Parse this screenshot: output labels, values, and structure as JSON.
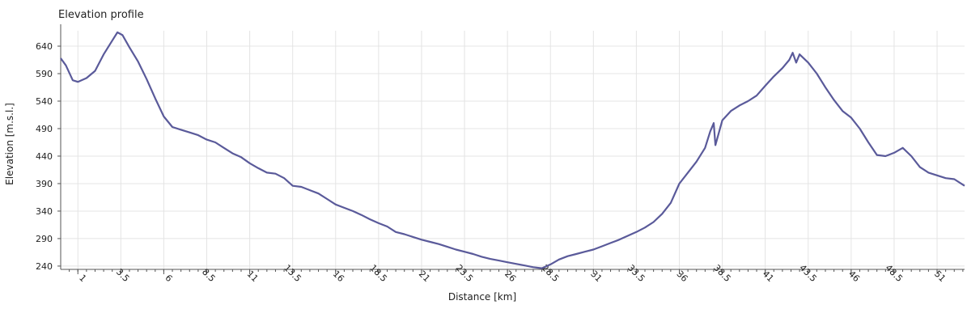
{
  "chart_data": {
    "type": "line",
    "title": "Elevation profile",
    "xlabel": "Distance [km]",
    "ylabel": "Elevation [m.s.l.]",
    "x_ticks": [
      "1",
      "3.5",
      "6",
      "8.5",
      "11",
      "13.5",
      "16",
      "18.5",
      "21",
      "23.5",
      "26",
      "28.5",
      "31",
      "33.5",
      "36",
      "38.5",
      "41",
      "43.5",
      "46",
      "48.5",
      "51"
    ],
    "y_ticks": [
      "240",
      "290",
      "340",
      "390",
      "440",
      "490",
      "540",
      "590",
      "640"
    ],
    "xlim": [
      0,
      52.6
    ],
    "ylim": [
      234,
      668
    ],
    "grid": true,
    "line_color": "#5a5a9a",
    "series": [
      {
        "x": [
          0.0,
          0.3,
          0.7,
          1.0,
          1.5,
          2.0,
          2.5,
          3.0,
          3.3,
          3.6,
          4.0,
          4.5,
          5.0,
          5.5,
          6.0,
          6.5,
          7.0,
          7.5,
          8.0,
          8.5,
          9.0,
          9.5,
          10.0,
          10.5,
          11.0,
          11.5,
          12.0,
          12.5,
          13.0,
          13.5,
          14.0,
          14.5,
          15.0,
          15.5,
          16.0,
          16.5,
          17.0,
          17.5,
          18.0,
          18.5,
          19.0,
          19.5,
          20.0,
          20.5,
          21.0,
          21.5,
          22.0,
          22.5,
          23.0,
          23.5,
          24.0,
          24.5,
          25.0,
          25.5,
          26.0,
          26.5,
          27.0,
          27.5,
          28.0,
          28.5,
          29.0,
          29.5,
          30.0,
          30.5,
          31.0,
          31.5,
          32.0,
          32.5,
          33.0,
          33.5,
          34.0,
          34.5,
          35.0,
          35.5,
          36.0,
          36.5,
          37.0,
          37.5,
          37.8,
          38.0,
          38.1,
          38.5,
          39.0,
          39.5,
          40.0,
          40.5,
          41.0,
          41.5,
          42.0,
          42.4,
          42.6,
          42.8,
          43.0,
          43.5,
          44.0,
          44.5,
          45.0,
          45.5,
          46.0,
          46.5,
          47.0,
          47.5,
          48.0,
          48.5,
          49.0,
          49.5,
          50.0,
          50.5,
          51.0,
          51.5,
          52.0,
          52.6
        ],
        "y": [
          618,
          605,
          578,
          575,
          582,
          595,
          625,
          650,
          665,
          660,
          638,
          612,
          580,
          545,
          512,
          493,
          488,
          483,
          478,
          470,
          465,
          455,
          445,
          438,
          427,
          418,
          410,
          408,
          400,
          386,
          384,
          378,
          372,
          362,
          352,
          346,
          340,
          333,
          325,
          318,
          312,
          302,
          298,
          293,
          288,
          284,
          280,
          275,
          270,
          266,
          262,
          257,
          253,
          250,
          247,
          244,
          241,
          238,
          236,
          243,
          252,
          258,
          262,
          266,
          270,
          276,
          282,
          288,
          295,
          302,
          310,
          320,
          335,
          355,
          390,
          410,
          430,
          455,
          485,
          500,
          460,
          505,
          522,
          532,
          540,
          550,
          568,
          585,
          600,
          615,
          628,
          610,
          625,
          610,
          590,
          565,
          542,
          522,
          510,
          490,
          465,
          442,
          440,
          446,
          455,
          440,
          420,
          410,
          405,
          400,
          398,
          386
        ]
      }
    ]
  }
}
